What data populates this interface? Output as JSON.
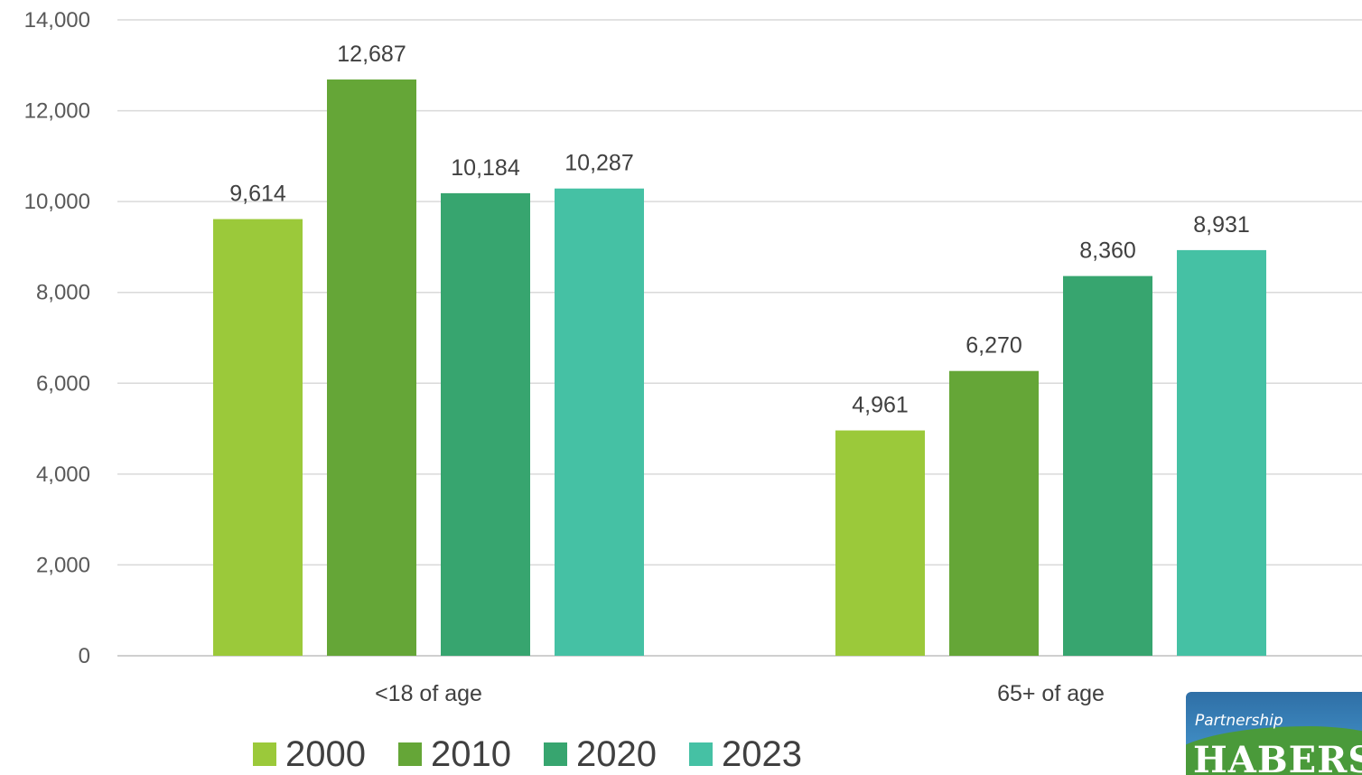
{
  "chart_data": {
    "type": "bar",
    "title": "",
    "xlabel": "",
    "ylabel": "",
    "categories": [
      "<18 of age",
      "65+ of age"
    ],
    "series": [
      {
        "name": "2000",
        "color": "#9bc93a",
        "values": [
          9614,
          4961
        ],
        "labels": [
          "9,614",
          "4,961"
        ]
      },
      {
        "name": "2010",
        "color": "#65a637",
        "values": [
          12687,
          6270
        ],
        "labels": [
          "12,687",
          "6,270"
        ]
      },
      {
        "name": "2020",
        "color": "#37a56f",
        "values": [
          10184,
          8360
        ],
        "labels": [
          "10,184",
          "8,360"
        ]
      },
      {
        "name": "2023",
        "color": "#45c1a4",
        "values": [
          10287,
          8931
        ],
        "labels": [
          "10,287",
          "8,931"
        ]
      }
    ],
    "ylim": [
      0,
      14000
    ],
    "yticks": [
      0,
      2000,
      4000,
      6000,
      8000,
      10000,
      12000,
      14000
    ],
    "ytick_labels": [
      "0",
      "2,000",
      "4,000",
      "6,000",
      "8,000",
      "10,000",
      "12,000",
      "14,000"
    ],
    "grid": true,
    "legend_position": "bottom"
  },
  "logo": {
    "small_text": "Partnership",
    "big_text": "HABERS"
  }
}
